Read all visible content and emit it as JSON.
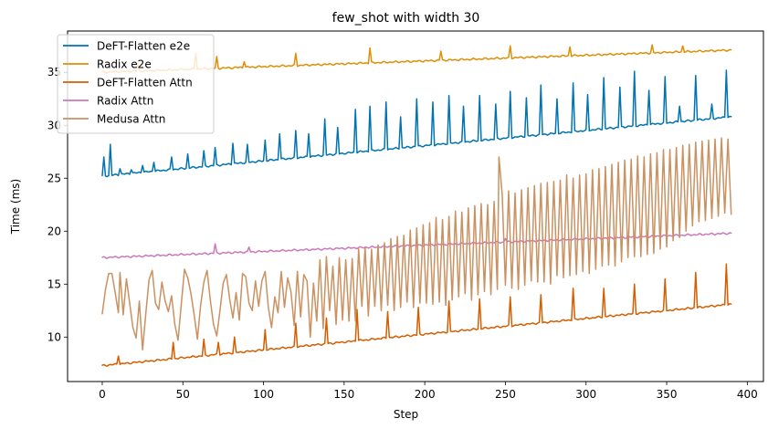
{
  "chart_data": {
    "type": "line",
    "title": "few_shot with width 30",
    "xlabel": "Step",
    "ylabel": "Time (ms)",
    "xlim": [
      -21.5,
      410
    ],
    "ylim": [
      5.8,
      38.9
    ],
    "xticks": [
      0,
      50,
      100,
      150,
      200,
      250,
      300,
      350,
      400
    ],
    "yticks": [
      10,
      15,
      20,
      25,
      30,
      35
    ],
    "grid": false,
    "legend_position": "top-left",
    "series": [
      {
        "name": "DeFT-Flatten e2e",
        "color": "#0173b2",
        "base": [
          [
            0,
            25.2
          ],
          [
            390,
            30.8
          ]
        ],
        "spikes": [
          [
            1,
            27.0
          ],
          [
            5,
            28.2
          ],
          [
            11,
            25.9
          ],
          [
            18,
            25.8
          ],
          [
            25,
            26.2
          ],
          [
            32,
            26.5
          ],
          [
            43,
            27.0
          ],
          [
            53,
            27.3
          ],
          [
            63,
            27.6
          ],
          [
            70,
            27.9
          ],
          [
            81,
            28.3
          ],
          [
            90,
            28.2
          ],
          [
            101,
            28.6
          ],
          [
            110,
            29.2
          ],
          [
            120,
            29.5
          ],
          [
            128,
            29.2
          ],
          [
            138,
            30.6
          ],
          [
            146,
            29.8
          ],
          [
            157,
            31.5
          ],
          [
            166,
            31.8
          ],
          [
            176,
            32.2
          ],
          [
            185,
            30.8
          ],
          [
            195,
            32.5
          ],
          [
            205,
            32.2
          ],
          [
            215,
            32.8
          ],
          [
            224,
            31.8
          ],
          [
            234,
            32.8
          ],
          [
            244,
            32.0
          ],
          [
            253,
            33.2
          ],
          [
            263,
            32.6
          ],
          [
            272,
            33.8
          ],
          [
            282,
            32.5
          ],
          [
            292,
            34.0
          ],
          [
            301,
            32.9
          ],
          [
            311,
            34.5
          ],
          [
            321,
            33.6
          ],
          [
            330,
            35.1
          ],
          [
            339,
            33.3
          ],
          [
            349,
            34.6
          ],
          [
            358,
            31.8
          ],
          [
            368,
            34.7
          ],
          [
            378,
            32.0
          ],
          [
            387,
            35.2
          ]
        ]
      },
      {
        "name": "Radix e2e",
        "color": "#de8f05",
        "base": [
          [
            0,
            35.0
          ],
          [
            390,
            37.1
          ]
        ],
        "spikes": [
          [
            22,
            35.8
          ],
          [
            58,
            36.8
          ],
          [
            71,
            36.5
          ],
          [
            88,
            36.0
          ],
          [
            120,
            36.8
          ],
          [
            166,
            37.3
          ],
          [
            210,
            37.0
          ],
          [
            253,
            37.5
          ],
          [
            290,
            37.4
          ],
          [
            341,
            37.6
          ],
          [
            360,
            37.5
          ]
        ]
      },
      {
        "name": "DeFT-Flatten Attn",
        "color": "#d55e00",
        "base": [
          [
            0,
            7.3
          ],
          [
            390,
            13.1
          ]
        ],
        "spikes": [
          [
            10,
            8.2
          ],
          [
            44,
            9.5
          ],
          [
            63,
            9.8
          ],
          [
            72,
            9.5
          ],
          [
            82,
            10.0
          ],
          [
            101,
            10.7
          ],
          [
            120,
            11.3
          ],
          [
            139,
            11.8
          ],
          [
            158,
            12.6
          ],
          [
            177,
            12.4
          ],
          [
            196,
            12.8
          ],
          [
            215,
            13.4
          ],
          [
            234,
            13.6
          ],
          [
            253,
            13.8
          ],
          [
            272,
            14.0
          ],
          [
            292,
            14.6
          ],
          [
            311,
            14.6
          ],
          [
            330,
            15.0
          ],
          [
            349,
            15.5
          ],
          [
            368,
            16.1
          ],
          [
            387,
            16.9
          ]
        ]
      },
      {
        "name": "Radix Attn",
        "color": "#cc78bc",
        "base": [
          [
            0,
            17.5
          ],
          [
            390,
            19.8
          ]
        ],
        "spikes": [
          [
            70,
            18.8
          ],
          [
            91,
            18.5
          ],
          [
            250,
            19.3
          ]
        ]
      },
      {
        "name": "Medusa Attn",
        "color": "#ca9161",
        "raw": [
          [
            0,
            12.2
          ],
          [
            2,
            14.5
          ],
          [
            4,
            16.0
          ],
          [
            6,
            16.0
          ],
          [
            8,
            14.2
          ],
          [
            10,
            12.3
          ],
          [
            11,
            16.1
          ],
          [
            13,
            12.1
          ],
          [
            15,
            15.5
          ],
          [
            17,
            13.2
          ],
          [
            19,
            10.9
          ],
          [
            21,
            9.9
          ],
          [
            23,
            13.4
          ],
          [
            25,
            8.8
          ],
          [
            27,
            12.2
          ],
          [
            29,
            15.4
          ],
          [
            31,
            16.3
          ],
          [
            33,
            13.2
          ],
          [
            35,
            12.6
          ],
          [
            37,
            15.2
          ],
          [
            39,
            13.4
          ],
          [
            41,
            12.4
          ],
          [
            43,
            13.9
          ],
          [
            45,
            11.2
          ],
          [
            47,
            9.7
          ],
          [
            49,
            13.1
          ],
          [
            51,
            16.4
          ],
          [
            53,
            15.6
          ],
          [
            55,
            14.1
          ],
          [
            57,
            12.1
          ],
          [
            59,
            9.8
          ],
          [
            61,
            13.0
          ],
          [
            63,
            15.2
          ],
          [
            65,
            16.3
          ],
          [
            67,
            13.5
          ],
          [
            69,
            11.2
          ],
          [
            71,
            10.1
          ],
          [
            73,
            12.5
          ],
          [
            75,
            15.1
          ],
          [
            77,
            15.9
          ],
          [
            79,
            13.6
          ],
          [
            81,
            11.8
          ],
          [
            83,
            14.2
          ],
          [
            85,
            11.6
          ],
          [
            87,
            16.0
          ],
          [
            89,
            15.7
          ],
          [
            91,
            13.2
          ],
          [
            93,
            12.5
          ],
          [
            95,
            15.3
          ],
          [
            97,
            12.9
          ],
          [
            99,
            15.3
          ],
          [
            101,
            16.2
          ],
          [
            103,
            12.8
          ],
          [
            105,
            10.9
          ],
          [
            107,
            13.8
          ],
          [
            109,
            12.3
          ],
          [
            111,
            16.2
          ],
          [
            113,
            12.8
          ],
          [
            115,
            15.6
          ],
          [
            117,
            14.3
          ],
          [
            119,
            11.1
          ],
          [
            121,
            16.2
          ],
          [
            123,
            11.9
          ],
          [
            125,
            15.9
          ],
          [
            127,
            15.3
          ],
          [
            129,
            10.0
          ],
          [
            131,
            15.1
          ],
          [
            133,
            11.5
          ],
          [
            135,
            17.3
          ],
          [
            137,
            10.8
          ],
          [
            139,
            17.6
          ],
          [
            141,
            12.5
          ],
          [
            143,
            16.7
          ],
          [
            145,
            11.2
          ],
          [
            147,
            17.5
          ],
          [
            149,
            11.6
          ],
          [
            151,
            17.3
          ],
          [
            153,
            11.5
          ],
          [
            155,
            17.4
          ],
          [
            157,
            11.5
          ],
          [
            159,
            18.3
          ],
          [
            161,
            12.9
          ],
          [
            163,
            18.5
          ],
          [
            165,
            12.0
          ],
          [
            167,
            18.3
          ],
          [
            169,
            12.9
          ],
          [
            171,
            18.7
          ],
          [
            173,
            12.5
          ],
          [
            175,
            18.9
          ],
          [
            177,
            13.0
          ],
          [
            179,
            19.3
          ],
          [
            181,
            12.5
          ],
          [
            183,
            19.5
          ],
          [
            185,
            12.8
          ],
          [
            187,
            19.6
          ],
          [
            189,
            13.3
          ],
          [
            191,
            20.1
          ],
          [
            193,
            12.8
          ],
          [
            195,
            20.3
          ],
          [
            197,
            13.2
          ],
          [
            199,
            20.6
          ],
          [
            201,
            13.2
          ],
          [
            203,
            20.8
          ],
          [
            205,
            13.1
          ],
          [
            207,
            21.3
          ],
          [
            209,
            13.3
          ],
          [
            211,
            21.1
          ],
          [
            213,
            13.0
          ],
          [
            215,
            21.4
          ],
          [
            217,
            13.5
          ],
          [
            219,
            21.9
          ],
          [
            221,
            13.8
          ],
          [
            223,
            21.8
          ],
          [
            225,
            14.1
          ],
          [
            227,
            22.2
          ],
          [
            229,
            13.5
          ],
          [
            231,
            22.4
          ],
          [
            233,
            14.0
          ],
          [
            235,
            22.6
          ],
          [
            237,
            14.3
          ],
          [
            239,
            22.5
          ],
          [
            241,
            14.0
          ],
          [
            243,
            22.8
          ],
          [
            245,
            14.5
          ],
          [
            246,
            27.0
          ],
          [
            248,
            23.5
          ],
          [
            250,
            14.9
          ],
          [
            252,
            23.8
          ],
          [
            254,
            14.6
          ],
          [
            256,
            23.6
          ],
          [
            258,
            14.5
          ],
          [
            260,
            23.9
          ],
          [
            262,
            14.9
          ],
          [
            264,
            24.1
          ],
          [
            266,
            15.3
          ],
          [
            268,
            24.3
          ],
          [
            270,
            15.2
          ],
          [
            272,
            24.5
          ],
          [
            274,
            15.2
          ],
          [
            276,
            24.6
          ],
          [
            278,
            15.0
          ],
          [
            280,
            24.7
          ],
          [
            282,
            15.8
          ],
          [
            284,
            24.8
          ],
          [
            286,
            15.6
          ],
          [
            288,
            25.3
          ],
          [
            290,
            15.8
          ],
          [
            292,
            25.0
          ],
          [
            294,
            15.9
          ],
          [
            296,
            25.3
          ],
          [
            298,
            16.2
          ],
          [
            300,
            25.4
          ],
          [
            302,
            16.0
          ],
          [
            304,
            25.8
          ],
          [
            306,
            16.4
          ],
          [
            308,
            25.9
          ],
          [
            310,
            16.7
          ],
          [
            312,
            26.1
          ],
          [
            314,
            16.8
          ],
          [
            316,
            26.3
          ],
          [
            318,
            16.7
          ],
          [
            320,
            26.5
          ],
          [
            322,
            17.1
          ],
          [
            324,
            26.7
          ],
          [
            326,
            17.5
          ],
          [
            328,
            26.8
          ],
          [
            330,
            17.6
          ],
          [
            332,
            27.1
          ],
          [
            334,
            17.6
          ],
          [
            336,
            27.0
          ],
          [
            338,
            17.8
          ],
          [
            340,
            27.3
          ],
          [
            342,
            17.9
          ],
          [
            344,
            27.4
          ],
          [
            346,
            18.3
          ],
          [
            348,
            27.7
          ],
          [
            350,
            18.5
          ],
          [
            352,
            27.7
          ],
          [
            354,
            19.1
          ],
          [
            356,
            27.9
          ],
          [
            358,
            19.4
          ],
          [
            360,
            28.1
          ],
          [
            362,
            20.0
          ],
          [
            364,
            28.2
          ],
          [
            366,
            20.5
          ],
          [
            368,
            28.4
          ],
          [
            370,
            20.9
          ],
          [
            372,
            28.5
          ],
          [
            374,
            21.0
          ],
          [
            376,
            28.6
          ],
          [
            378,
            21.2
          ],
          [
            380,
            28.7
          ],
          [
            382,
            21.4
          ],
          [
            384,
            28.8
          ],
          [
            386,
            21.7
          ],
          [
            388,
            28.7
          ],
          [
            390,
            21.6
          ]
        ]
      }
    ]
  }
}
